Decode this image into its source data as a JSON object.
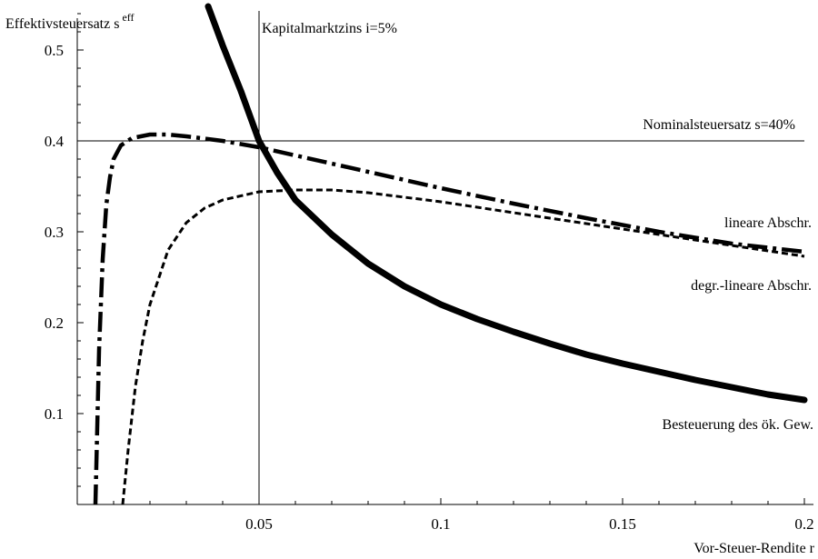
{
  "chart_data": {
    "type": "line",
    "title": "",
    "xlabel": "Vor-Steuer-Rendite r",
    "ylabel": "Effektivsteuersatz s",
    "ylabel_sup": "eff",
    "xlim": [
      0,
      0.2
    ],
    "ylim": [
      0,
      0.55
    ],
    "grid": false,
    "x_ticks": [
      0.05,
      0.1,
      0.15,
      0.2
    ],
    "x_tick_labels": [
      "0.05",
      "0.1",
      "0.15",
      "0.2"
    ],
    "y_ticks": [
      0.1,
      0.2,
      0.3,
      0.4,
      0.5
    ],
    "y_tick_labels": [
      "0.1",
      "0.2",
      "0.3",
      "0.4",
      "0.5"
    ],
    "reference_lines": [
      {
        "orientation": "vertical",
        "value": 0.05,
        "label": "Kapitalmarktzins i=5%"
      },
      {
        "orientation": "horizontal",
        "value": 0.4,
        "label": "Nominalsteuersatz s=40%"
      }
    ],
    "series": [
      {
        "name": "Besteuerung des ök. Gew.",
        "style": "solid-thick",
        "x": [
          0.036,
          0.04,
          0.045,
          0.05,
          0.055,
          0.06,
          0.07,
          0.08,
          0.09,
          0.1,
          0.11,
          0.12,
          0.13,
          0.14,
          0.15,
          0.16,
          0.17,
          0.18,
          0.19,
          0.2
        ],
        "y": [
          0.548,
          0.505,
          0.455,
          0.4,
          0.365,
          0.335,
          0.297,
          0.265,
          0.24,
          0.22,
          0.204,
          0.19,
          0.177,
          0.165,
          0.155,
          0.146,
          0.137,
          0.129,
          0.121,
          0.115
        ]
      },
      {
        "name": "lineare Abschr.",
        "style": "dash-dot",
        "x": [
          0.005,
          0.006,
          0.007,
          0.008,
          0.009,
          0.01,
          0.012,
          0.015,
          0.02,
          0.025,
          0.03,
          0.04,
          0.05,
          0.06,
          0.08,
          0.1,
          0.12,
          0.14,
          0.16,
          0.18,
          0.2
        ],
        "y": [
          0.0,
          0.17,
          0.27,
          0.33,
          0.36,
          0.38,
          0.395,
          0.403,
          0.407,
          0.407,
          0.405,
          0.4,
          0.393,
          0.384,
          0.366,
          0.348,
          0.331,
          0.315,
          0.3,
          0.287,
          0.278
        ]
      },
      {
        "name": "degr.-lineare Abschr.",
        "style": "dashed",
        "x": [
          0.0125,
          0.014,
          0.016,
          0.018,
          0.02,
          0.025,
          0.03,
          0.035,
          0.04,
          0.05,
          0.06,
          0.07,
          0.08,
          0.1,
          0.12,
          0.14,
          0.16,
          0.18,
          0.2
        ],
        "y": [
          0.0,
          0.06,
          0.13,
          0.18,
          0.22,
          0.28,
          0.31,
          0.326,
          0.335,
          0.344,
          0.346,
          0.346,
          0.343,
          0.333,
          0.321,
          0.309,
          0.297,
          0.285,
          0.273
        ]
      }
    ]
  }
}
